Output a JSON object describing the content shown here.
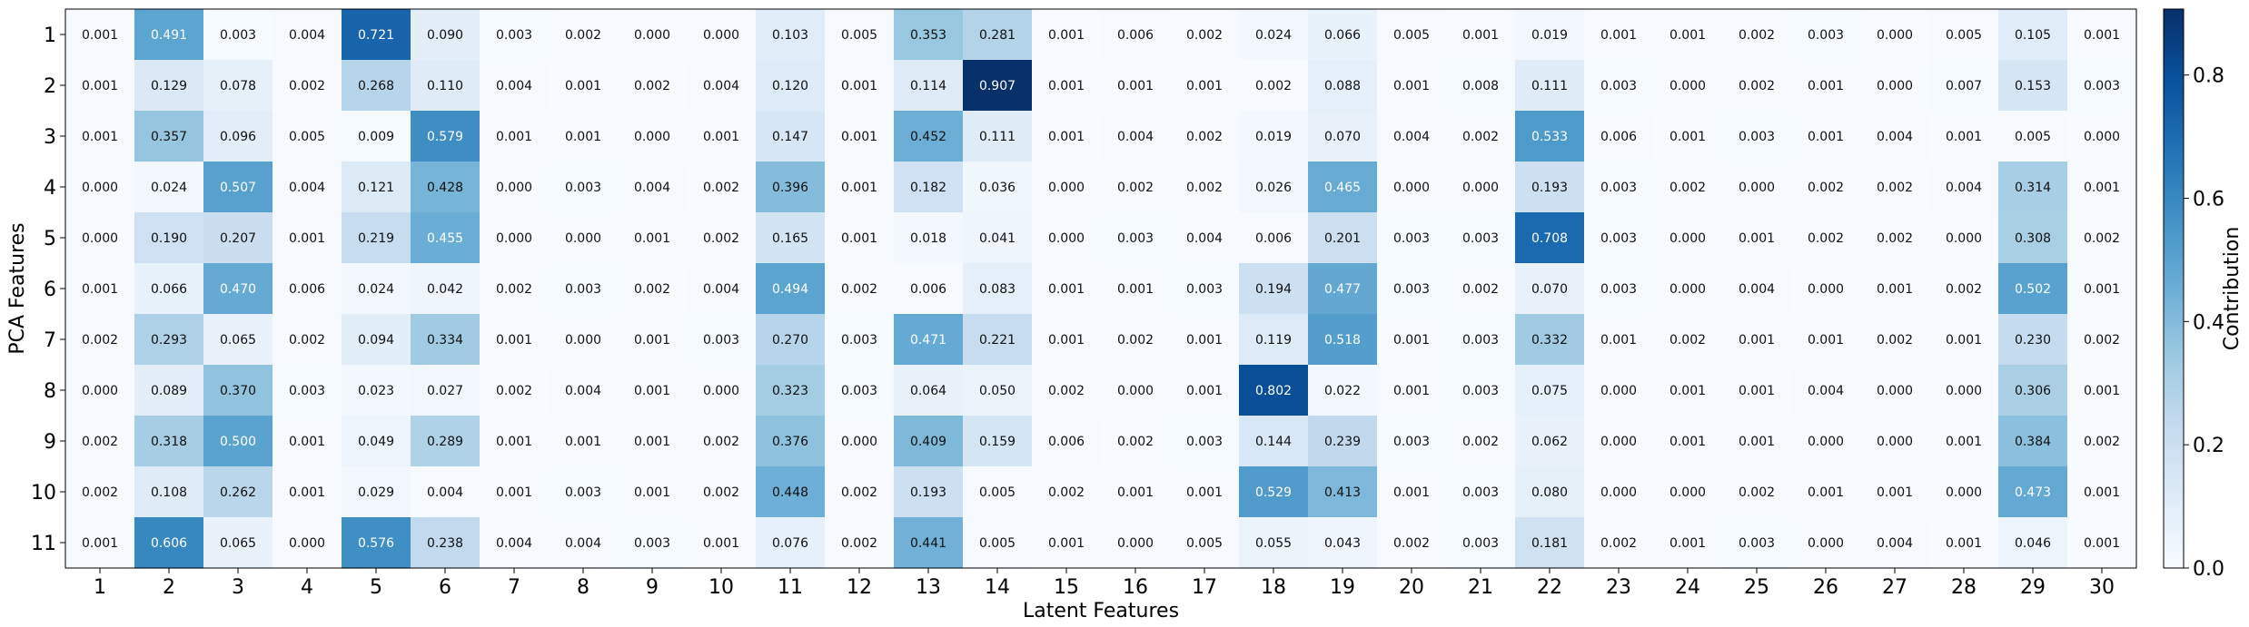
{
  "chart_data": {
    "type": "heatmap",
    "title": "",
    "xlabel": "Latent Features",
    "ylabel": "PCA Features",
    "colorbar_label": "Contribution",
    "x_categories": [
      "1",
      "2",
      "3",
      "4",
      "5",
      "6",
      "7",
      "8",
      "9",
      "10",
      "11",
      "12",
      "13",
      "14",
      "15",
      "16",
      "17",
      "18",
      "19",
      "20",
      "21",
      "22",
      "23",
      "24",
      "25",
      "26",
      "27",
      "28",
      "29",
      "30"
    ],
    "y_categories": [
      "1",
      "2",
      "3",
      "4",
      "5",
      "6",
      "7",
      "8",
      "9",
      "10",
      "11"
    ],
    "values": [
      [
        0.001,
        0.491,
        0.003,
        0.004,
        0.721,
        0.09,
        0.003,
        0.002,
        0.0,
        0.0,
        0.103,
        0.005,
        0.353,
        0.281,
        0.001,
        0.006,
        0.002,
        0.024,
        0.066,
        0.005,
        0.001,
        0.019,
        0.001,
        0.001,
        0.002,
        0.003,
        0.0,
        0.005,
        0.105,
        0.001
      ],
      [
        0.001,
        0.129,
        0.078,
        0.002,
        0.268,
        0.11,
        0.004,
        0.001,
        0.002,
        0.004,
        0.12,
        0.001,
        0.114,
        0.907,
        0.001,
        0.001,
        0.001,
        0.002,
        0.088,
        0.001,
        0.008,
        0.111,
        0.003,
        0.0,
        0.002,
        0.001,
        0.0,
        0.007,
        0.153,
        0.003
      ],
      [
        0.001,
        0.357,
        0.096,
        0.005,
        0.009,
        0.579,
        0.001,
        0.001,
        0.0,
        0.001,
        0.147,
        0.001,
        0.452,
        0.111,
        0.001,
        0.004,
        0.002,
        0.019,
        0.07,
        0.004,
        0.002,
        0.533,
        0.006,
        0.001,
        0.003,
        0.001,
        0.004,
        0.001,
        0.005,
        0.0
      ],
      [
        0.0,
        0.024,
        0.507,
        0.004,
        0.121,
        0.428,
        0.0,
        0.003,
        0.004,
        0.002,
        0.396,
        0.001,
        0.182,
        0.036,
        0.0,
        0.002,
        0.002,
        0.026,
        0.465,
        0.0,
        0.0,
        0.193,
        0.003,
        0.002,
        0.0,
        0.002,
        0.002,
        0.004,
        0.314,
        0.001
      ],
      [
        0.0,
        0.19,
        0.207,
        0.001,
        0.219,
        0.455,
        0.0,
        0.0,
        0.001,
        0.002,
        0.165,
        0.001,
        0.018,
        0.041,
        0.0,
        0.003,
        0.004,
        0.006,
        0.201,
        0.003,
        0.003,
        0.708,
        0.003,
        0.0,
        0.001,
        0.002,
        0.002,
        0.0,
        0.308,
        0.002
      ],
      [
        0.001,
        0.066,
        0.47,
        0.006,
        0.024,
        0.042,
        0.002,
        0.003,
        0.002,
        0.004,
        0.494,
        0.002,
        0.006,
        0.083,
        0.001,
        0.001,
        0.003,
        0.194,
        0.477,
        0.003,
        0.002,
        0.07,
        0.003,
        0.0,
        0.004,
        0.0,
        0.001,
        0.002,
        0.502,
        0.001
      ],
      [
        0.002,
        0.293,
        0.065,
        0.002,
        0.094,
        0.334,
        0.001,
        0.0,
        0.001,
        0.003,
        0.27,
        0.003,
        0.471,
        0.221,
        0.001,
        0.002,
        0.001,
        0.119,
        0.518,
        0.001,
        0.003,
        0.332,
        0.001,
        0.002,
        0.001,
        0.001,
        0.002,
        0.001,
        0.23,
        0.002
      ],
      [
        0.0,
        0.089,
        0.37,
        0.003,
        0.023,
        0.027,
        0.002,
        0.004,
        0.001,
        0.0,
        0.323,
        0.003,
        0.064,
        0.05,
        0.002,
        0.0,
        0.001,
        0.802,
        0.022,
        0.001,
        0.003,
        0.075,
        0.0,
        0.001,
        0.001,
        0.004,
        0.0,
        0.0,
        0.306,
        0.001
      ],
      [
        0.002,
        0.318,
        0.5,
        0.001,
        0.049,
        0.289,
        0.001,
        0.001,
        0.001,
        0.002,
        0.376,
        0.0,
        0.409,
        0.159,
        0.006,
        0.002,
        0.003,
        0.144,
        0.239,
        0.003,
        0.002,
        0.062,
        0.0,
        0.001,
        0.001,
        0.0,
        0.0,
        0.001,
        0.384,
        0.002
      ],
      [
        0.002,
        0.108,
        0.262,
        0.001,
        0.029,
        0.004,
        0.001,
        0.003,
        0.001,
        0.002,
        0.448,
        0.002,
        0.193,
        0.005,
        0.002,
        0.001,
        0.001,
        0.529,
        0.413,
        0.001,
        0.003,
        0.08,
        0.0,
        0.0,
        0.002,
        0.001,
        0.001,
        0.0,
        0.473,
        0.001
      ],
      [
        0.001,
        0.606,
        0.065,
        0.0,
        0.576,
        0.238,
        0.004,
        0.004,
        0.003,
        0.001,
        0.076,
        0.002,
        0.441,
        0.005,
        0.001,
        0.0,
        0.005,
        0.055,
        0.043,
        0.002,
        0.003,
        0.181,
        0.002,
        0.001,
        0.003,
        0.0,
        0.004,
        0.001,
        0.046,
        0.001
      ]
    ],
    "value_format": "3 decimals",
    "vmin": 0.0,
    "vmax": 0.907,
    "colormap": "Blues",
    "colorbar_ticks": [
      "0.0",
      "0.2",
      "0.4",
      "0.6",
      "0.8"
    ],
    "colorbar_tick_values": [
      0.0,
      0.2,
      0.4,
      0.6,
      0.8
    ],
    "grid": false,
    "legend": "colorbar-right"
  }
}
